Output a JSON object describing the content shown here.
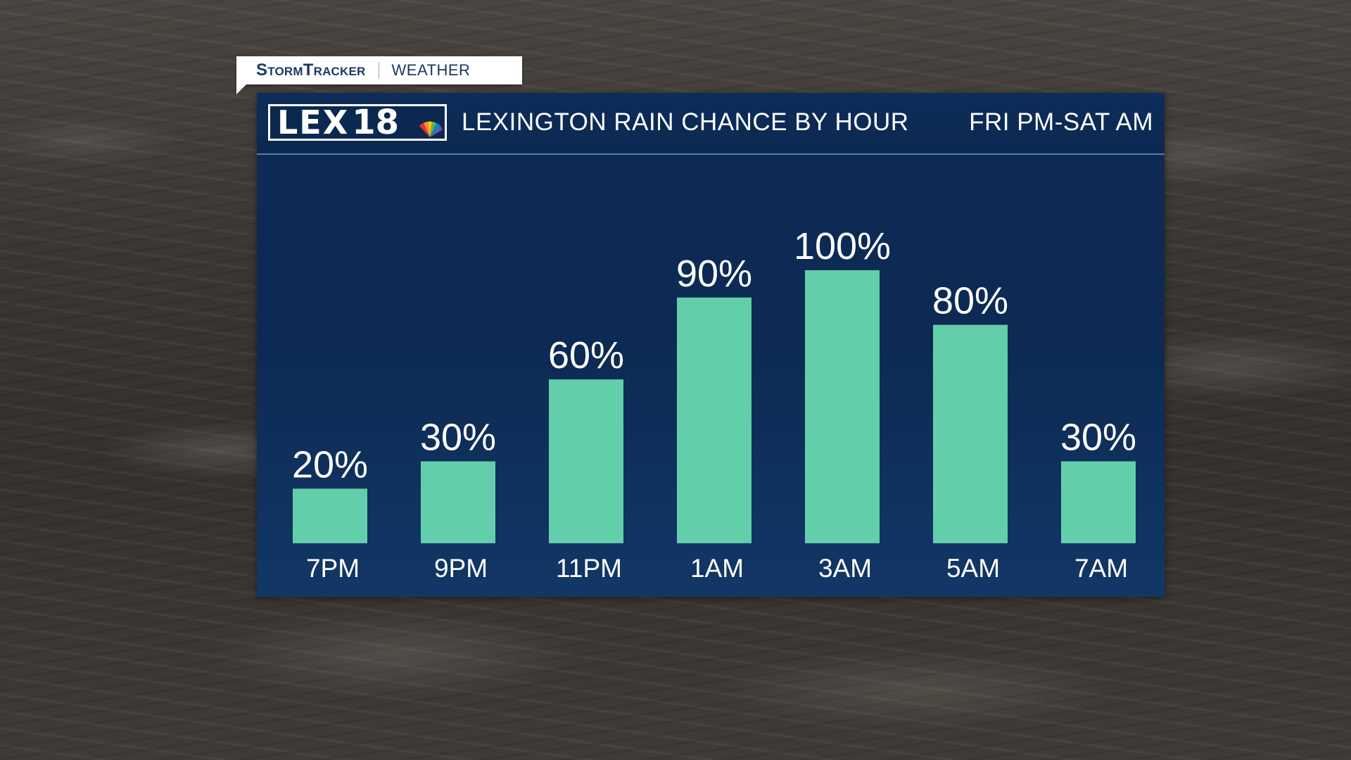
{
  "tag": {
    "brand": "StormTracker",
    "section": "Weather"
  },
  "logo": {
    "letters": "LEX",
    "number": "18"
  },
  "colors": {
    "bar": "#62cfaa",
    "panel": "#0d2b55",
    "tag_text": "#1a3a63"
  },
  "chart_data": {
    "type": "bar",
    "title": "LEXINGTON RAIN CHANCE BY HOUR",
    "subtitle": "FRI PM-SAT AM",
    "categories": [
      "7PM",
      "9PM",
      "11PM",
      "1AM",
      "3AM",
      "5AM",
      "7AM"
    ],
    "values": [
      20,
      30,
      60,
      90,
      100,
      80,
      30
    ],
    "labels": [
      "20%",
      "30%",
      "60%",
      "90%",
      "100%",
      "80%",
      "30%"
    ],
    "unit": "%",
    "ylim": [
      0,
      100
    ],
    "grid": false,
    "legend": "none"
  }
}
